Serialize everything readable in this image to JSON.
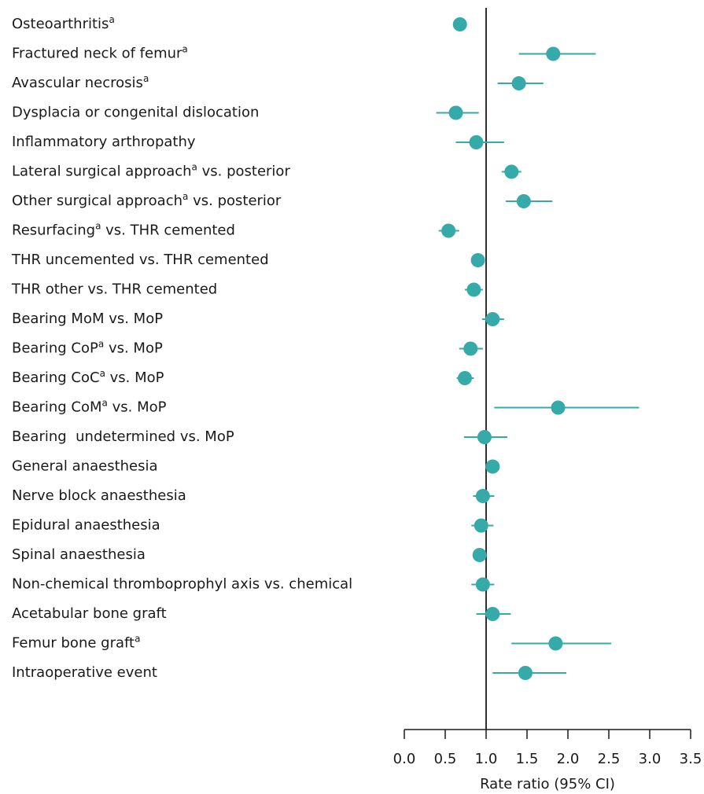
{
  "chart_data": {
    "type": "forest",
    "x_label": "Rate ratio (95% CI)",
    "categories": [
      [
        "Osteoarthritis",
        "a"
      ],
      [
        "Fractured neck of femur",
        "a"
      ],
      [
        "Avascular necrosis",
        "a"
      ],
      [
        "Dysplacia or congenital dislocation"
      ],
      [
        "Inflammatory arthropathy"
      ],
      [
        "Lateral surgical approach",
        "a",
        " vs. posterior"
      ],
      [
        "Other surgical approach",
        "a",
        " vs. posterior"
      ],
      [
        "Resurfacing",
        "a",
        " vs. THR cemented"
      ],
      [
        "THR uncemented vs. THR cemented"
      ],
      [
        "THR other vs. THR cemented"
      ],
      [
        "Bearing MoM vs. MoP"
      ],
      [
        "Bearing CoP",
        "a",
        " vs. MoP"
      ],
      [
        "Bearing CoC",
        "a",
        " vs. MoP"
      ],
      [
        "Bearing CoM",
        "a",
        " vs. MoP"
      ],
      [
        "Bearing  undetermined vs. MoP"
      ],
      [
        "General anaesthesia"
      ],
      [
        "Nerve block anaesthesia"
      ],
      [
        "Epidural anaesthesia"
      ],
      [
        "Spinal anaesthesia"
      ],
      [
        "Non-chemical thromboprophyl axis vs. chemical"
      ],
      [
        "Acetabular bone graft"
      ],
      [
        "Femur bone graft",
        "a"
      ],
      [
        "Intraoperative event"
      ]
    ],
    "values": [
      0.68,
      1.82,
      1.4,
      0.63,
      0.88,
      1.31,
      1.46,
      0.54,
      0.9,
      0.85,
      1.08,
      0.81,
      0.74,
      1.88,
      0.98,
      1.08,
      0.96,
      0.94,
      0.92,
      0.96,
      1.08,
      1.85,
      1.48
    ],
    "ci_low": [
      0.65,
      1.4,
      1.14,
      0.39,
      0.63,
      1.19,
      1.24,
      0.42,
      0.83,
      0.74,
      0.95,
      0.67,
      0.64,
      1.1,
      0.73,
      1.01,
      0.84,
      0.82,
      0.86,
      0.82,
      0.88,
      1.31,
      1.08
    ],
    "ci_high": [
      0.72,
      2.34,
      1.7,
      0.91,
      1.22,
      1.43,
      1.81,
      0.67,
      0.98,
      0.96,
      1.22,
      0.96,
      0.85,
      2.87,
      1.26,
      1.15,
      1.1,
      1.09,
      1.0,
      1.1,
      1.3,
      2.53,
      1.98
    ],
    "color": "#35aaa9",
    "reference_line": 1,
    "xlim": [
      0,
      3.5
    ],
    "xticks": [
      {
        "value": 0,
        "label": "0.0"
      },
      0.5,
      {
        "value": 1,
        "label": "1.0"
      },
      1.5,
      {
        "value": 2,
        "label": "2.0"
      },
      2.5,
      {
        "value": 3,
        "label": "3.0"
      },
      3.5
    ]
  }
}
